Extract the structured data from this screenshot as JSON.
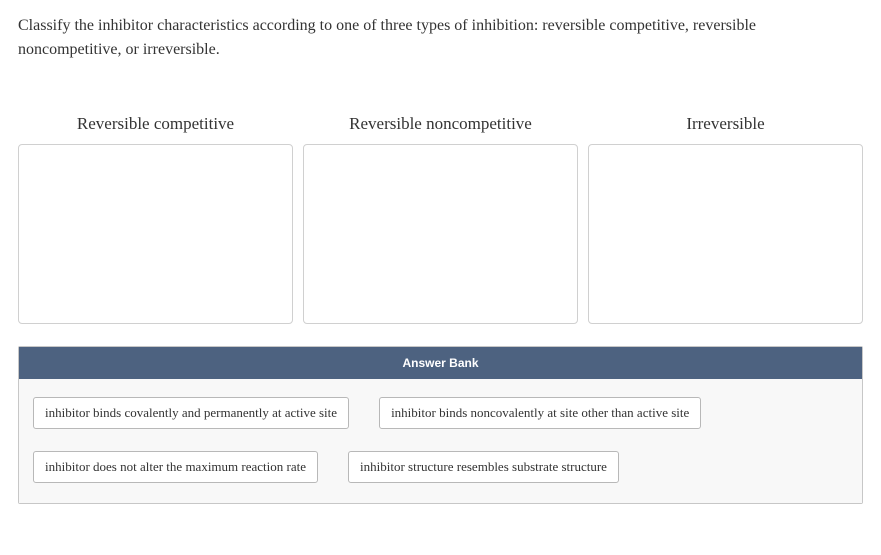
{
  "prompt": "Classify the inhibitor characteristics according to one of three types of inhibition: reversible competitive, reversible noncompetitive, or irreversible.",
  "categories": [
    {
      "title": "Reversible competitive"
    },
    {
      "title": "Reversible noncompetitive"
    },
    {
      "title": "Irreversible"
    }
  ],
  "answerBank": {
    "header": "Answer Bank",
    "items": [
      "inhibitor binds covalently and permanently at active site",
      "inhibitor binds noncovalently at site other than active site",
      "inhibitor does not alter the maximum reaction rate",
      "inhibitor structure resembles substrate structure"
    ]
  },
  "colors": {
    "bankHeaderBg": "#4d6280",
    "bankHeaderText": "#ffffff",
    "bankBodyBg": "#f8f8f8",
    "chipBorder": "#b8b8b8",
    "dropBorder": "#d0d0d0",
    "textColor": "#333333"
  },
  "typography": {
    "promptFontSize": 16,
    "categoryTitleFontSize": 17,
    "bankHeaderFontSize": 12,
    "chipFontSize": 13
  }
}
